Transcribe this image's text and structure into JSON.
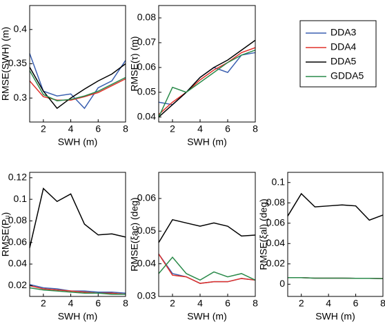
{
  "chart_data": [
    {
      "type": "line",
      "xlabel": "SWH (m)",
      "ylabel": "RMSE(SWH) (m)",
      "x": [
        1,
        2,
        3,
        4,
        5,
        6,
        7,
        8
      ],
      "xlim": [
        1,
        8
      ],
      "xticks": [
        2,
        4,
        6,
        8
      ],
      "ylim": [
        0.265,
        0.435
      ],
      "yticks": [
        0.3,
        0.35,
        0.4
      ],
      "series": [
        {
          "name": "DDA3",
          "color": "#3a5fb0",
          "values": [
            0.365,
            0.31,
            0.303,
            0.306,
            0.285,
            0.315,
            0.325,
            0.355
          ]
        },
        {
          "name": "DDA4",
          "color": "#e0302a",
          "values": [
            0.325,
            0.302,
            0.297,
            0.297,
            0.302,
            0.308,
            0.318,
            0.328
          ]
        },
        {
          "name": "DDA5",
          "color": "#000000",
          "values": [
            0.345,
            0.31,
            0.285,
            0.3,
            0.313,
            0.325,
            0.335,
            0.35
          ]
        },
        {
          "name": "GDDA5",
          "color": "#2a8a4a",
          "values": [
            0.34,
            0.305,
            0.296,
            0.298,
            0.303,
            0.31,
            0.32,
            0.33
          ]
        }
      ]
    },
    {
      "type": "line",
      "xlabel": "SWH (m)",
      "ylabel": "RMSE(τ) (m)",
      "x": [
        1,
        2,
        3,
        4,
        5,
        6,
        7,
        8
      ],
      "xlim": [
        1,
        8
      ],
      "xticks": [
        2,
        4,
        6,
        8
      ],
      "ylim": [
        0.038,
        0.085
      ],
      "yticks": [
        0.04,
        0.05,
        0.06,
        0.07,
        0.08
      ],
      "series": [
        {
          "color": "#3a5fb0",
          "values": [
            0.046,
            0.045,
            0.05,
            0.056,
            0.06,
            0.058,
            0.065,
            0.066
          ]
        },
        {
          "color": "#e0302a",
          "values": [
            0.041,
            0.046,
            0.05,
            0.055,
            0.059,
            0.062,
            0.066,
            0.068
          ]
        },
        {
          "color": "#000000",
          "values": [
            0.04,
            0.045,
            0.05,
            0.056,
            0.06,
            0.063,
            0.067,
            0.071
          ]
        },
        {
          "color": "#2a8a4a",
          "values": [
            0.04,
            0.052,
            0.05,
            0.054,
            0.058,
            0.062,
            0.065,
            0.067
          ]
        }
      ]
    },
    {
      "type": "line",
      "xlabel": "SWH (m)",
      "ylabel": "RMSE(Pᵤ)",
      "x": [
        1,
        2,
        3,
        4,
        5,
        6,
        7,
        8
      ],
      "xlim": [
        1,
        8
      ],
      "xticks": [
        2,
        4,
        6,
        8
      ],
      "ylim": [
        0.01,
        0.125
      ],
      "yticks": [
        0.02,
        0.04,
        0.06,
        0.08,
        0.1,
        0.12
      ],
      "series": [
        {
          "color": "#3a5fb0",
          "values": [
            0.021,
            0.018,
            0.017,
            0.015,
            0.015,
            0.014,
            0.014,
            0.013
          ]
        },
        {
          "color": "#e0302a",
          "values": [
            0.02,
            0.017,
            0.016,
            0.015,
            0.014,
            0.013,
            0.013,
            0.012
          ]
        },
        {
          "color": "#000000",
          "values": [
            0.055,
            0.11,
            0.098,
            0.105,
            0.077,
            0.067,
            0.068,
            0.065
          ]
        },
        {
          "color": "#2a8a4a",
          "values": [
            0.018,
            0.016,
            0.015,
            0.014,
            0.013,
            0.013,
            0.012,
            0.012
          ]
        }
      ]
    },
    {
      "type": "line",
      "xlabel": "SWH (m)",
      "ylabel": "RMSE(ξac) (deg)",
      "x": [
        1,
        2,
        3,
        4,
        5,
        6,
        7,
        8
      ],
      "xlim": [
        1,
        8
      ],
      "xticks": [
        2,
        4,
        6,
        8
      ],
      "ylim": [
        0.03,
        0.068
      ],
      "yticks": [
        0.03,
        0.04,
        0.05,
        0.06
      ],
      "series": [
        {
          "color": "#3a5fb0",
          "values": [
            0.043,
            0.037,
            0.036,
            0.034,
            0.0345,
            0.0345,
            0.0355,
            0.035
          ]
        },
        {
          "color": "#e0302a",
          "values": [
            0.043,
            0.0365,
            0.036,
            0.034,
            0.0345,
            0.0345,
            0.0355,
            0.035
          ]
        },
        {
          "color": "#000000",
          "values": [
            0.0465,
            0.0535,
            0.0525,
            0.0515,
            0.0525,
            0.0515,
            0.0485,
            0.0488
          ]
        },
        {
          "color": "#2a8a4a",
          "values": [
            0.037,
            0.042,
            0.037,
            0.035,
            0.0375,
            0.036,
            0.037,
            0.035
          ]
        }
      ]
    },
    {
      "type": "line",
      "xlabel": "SWH (m)",
      "ylabel": "RMSE(ξal) (deg)",
      "x": [
        1,
        2,
        3,
        4,
        5,
        6,
        7,
        8
      ],
      "xlim": [
        1,
        8
      ],
      "xticks": [
        2,
        4,
        6,
        8
      ],
      "ylim": [
        -0.012,
        0.11
      ],
      "yticks": [
        0,
        0.02,
        0.04,
        0.06,
        0.08,
        0.1
      ],
      "series": [
        {
          "color": "#3a5fb0",
          "values": [
            0.0065,
            0.0065,
            0.006,
            0.006,
            0.006,
            0.0058,
            0.0058,
            0.0055
          ]
        },
        {
          "color": "#e0302a",
          "values": [
            0.0065,
            0.0065,
            0.006,
            0.006,
            0.006,
            0.0058,
            0.0058,
            0.0055
          ]
        },
        {
          "color": "#000000",
          "values": [
            0.067,
            0.089,
            0.076,
            0.077,
            0.078,
            0.077,
            0.063,
            0.068
          ]
        },
        {
          "color": "#2a8a4a",
          "values": [
            0.0065,
            0.0065,
            0.006,
            0.006,
            0.006,
            0.0058,
            0.0058,
            0.0055
          ]
        }
      ]
    }
  ]
}
